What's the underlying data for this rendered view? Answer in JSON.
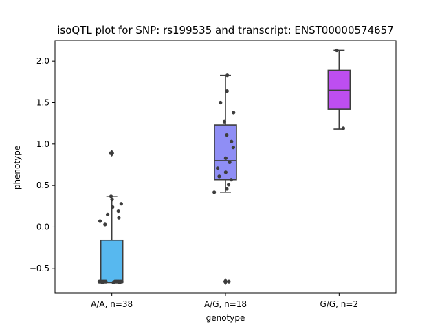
{
  "chart_data": {
    "type": "box",
    "title": "isoQTL plot for SNP: rs199535 and transcript: ENST00000574657",
    "xlabel": "genotype",
    "ylabel": "phenotype",
    "ylim": [
      -0.8,
      2.25
    ],
    "yticks": [
      -0.5,
      0.0,
      0.5,
      1.0,
      1.5,
      2.0
    ],
    "ytick_labels": [
      "−0.5",
      "0.0",
      "0.5",
      "1.0",
      "1.5",
      "2.0"
    ],
    "categories": [
      "A/A, n=38",
      "A/G, n=18",
      "G/G, n=2"
    ],
    "colors": [
      "#57b8ef",
      "#8f8ef5",
      "#bd4ef0"
    ],
    "boxes": [
      {
        "category": "A/A, n=38",
        "q1": -0.67,
        "median": -0.67,
        "q3": -0.16,
        "whisker_low": -0.67,
        "whisker_high": 0.37,
        "outliers": [
          0.89
        ]
      },
      {
        "category": "A/G, n=18",
        "q1": 0.57,
        "median": 0.8,
        "q3": 1.23,
        "whisker_low": 0.42,
        "whisker_high": 1.83,
        "outliers": [
          -0.66
        ]
      },
      {
        "category": "G/G, n=2",
        "q1": 1.42,
        "median": 1.65,
        "q3": 1.89,
        "whisker_low": 1.18,
        "whisker_high": 2.13,
        "outliers": []
      }
    ],
    "points": [
      [
        {
          "dx": -0.05,
          "y": 0.89
        },
        {
          "dx": -0.03,
          "y": 0.37
        },
        {
          "dx": 0.01,
          "y": 0.33
        },
        {
          "dx": 0.36,
          "y": 0.28
        },
        {
          "dx": 0.03,
          "y": 0.24
        },
        {
          "dx": 0.25,
          "y": 0.19
        },
        {
          "dx": -0.16,
          "y": 0.15
        },
        {
          "dx": 0.27,
          "y": 0.11
        },
        {
          "dx": -0.45,
          "y": 0.07
        },
        {
          "dx": -0.26,
          "y": 0.03
        },
        {
          "dx": -0.48,
          "y": -0.66
        },
        {
          "dx": -0.43,
          "y": -0.66
        },
        {
          "dx": -0.38,
          "y": -0.66
        },
        {
          "dx": -0.33,
          "y": -0.66
        },
        {
          "dx": -0.28,
          "y": -0.66
        },
        {
          "dx": -0.23,
          "y": -0.66
        },
        {
          "dx": 0.12,
          "y": -0.66
        },
        {
          "dx": 0.17,
          "y": -0.66
        },
        {
          "dx": 0.22,
          "y": -0.66
        },
        {
          "dx": 0.27,
          "y": -0.66
        },
        {
          "dx": 0.33,
          "y": -0.66
        },
        {
          "dx": 0.38,
          "y": -0.66
        },
        {
          "dx": -0.36,
          "y": -0.67
        },
        {
          "dx": 0.06,
          "y": -0.67
        },
        {
          "dx": 0.3,
          "y": -0.67
        }
      ],
      [
        {
          "dx": 0.07,
          "y": 1.83
        },
        {
          "dx": 0.06,
          "y": 1.64
        },
        {
          "dx": -0.19,
          "y": 1.5
        },
        {
          "dx": 0.31,
          "y": 1.38
        },
        {
          "dx": -0.04,
          "y": 1.27
        },
        {
          "dx": 0.05,
          "y": 1.11
        },
        {
          "dx": 0.23,
          "y": 1.03
        },
        {
          "dx": 0.3,
          "y": 0.96
        },
        {
          "dx": 0.01,
          "y": 0.83
        },
        {
          "dx": 0.16,
          "y": 0.78
        },
        {
          "dx": -0.3,
          "y": 0.71
        },
        {
          "dx": 0.01,
          "y": 0.66
        },
        {
          "dx": -0.24,
          "y": 0.61
        },
        {
          "dx": 0.22,
          "y": 0.57
        },
        {
          "dx": 0.12,
          "y": 0.51
        },
        {
          "dx": 0.05,
          "y": 0.46
        },
        {
          "dx": -0.43,
          "y": 0.42
        },
        {
          "dx": 0.13,
          "y": -0.66
        }
      ],
      [
        {
          "dx": -0.09,
          "y": 2.13
        },
        {
          "dx": 0.16,
          "y": 1.19
        }
      ]
    ]
  }
}
